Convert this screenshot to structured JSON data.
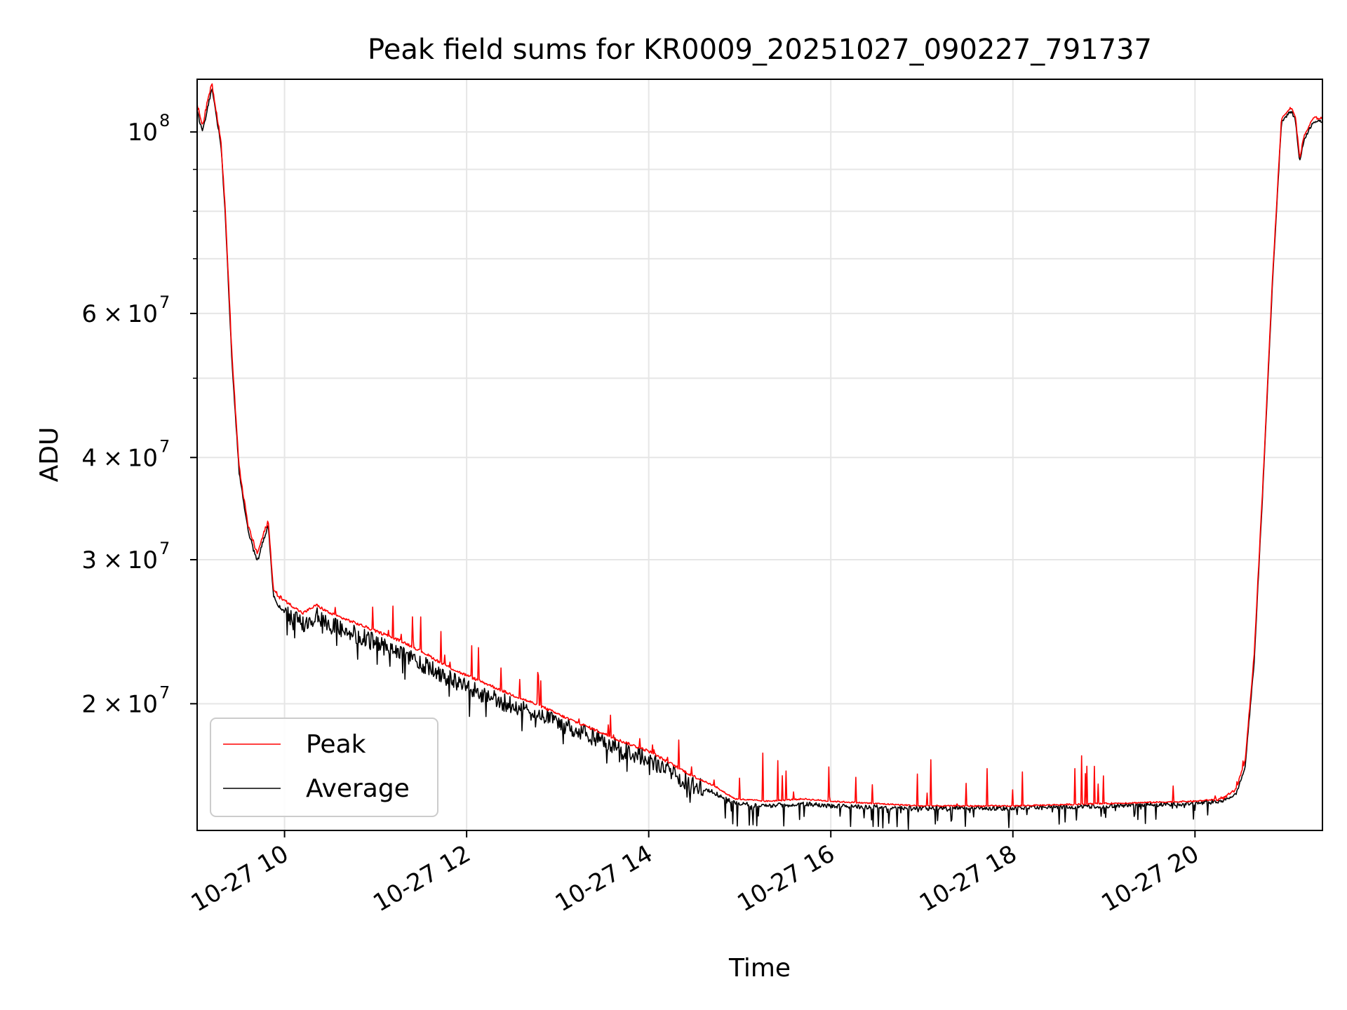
{
  "chart_data": {
    "type": "line",
    "title": "Peak field sums for KR0009_20251027_090227_791737",
    "xlabel": "Time",
    "ylabel": "ADU",
    "yscale": "log",
    "grid": true,
    "legend_position": "lower-left",
    "xlim_hours": [
      9.04,
      21.4
    ],
    "ylim": [
      14000000,
      116000000
    ],
    "x_ticks": [
      {
        "hour": 10,
        "label": "10-27 10"
      },
      {
        "hour": 12,
        "label": "10-27 12"
      },
      {
        "hour": 14,
        "label": "10-27 14"
      },
      {
        "hour": 16,
        "label": "10-27 16"
      },
      {
        "hour": 18,
        "label": "10-27 18"
      },
      {
        "hour": 20,
        "label": "10-27 20"
      }
    ],
    "y_ticks": [
      {
        "value": 20000000,
        "mant": "2",
        "exp": "7"
      },
      {
        "value": 30000000,
        "mant": "3",
        "exp": "7"
      },
      {
        "value": 40000000,
        "mant": "4",
        "exp": "7"
      },
      {
        "value": 60000000,
        "mant": "6",
        "exp": "7"
      },
      {
        "value": 100000000,
        "mant": "10",
        "exp": "8"
      }
    ],
    "y_minor_ticks": [
      50000000,
      70000000,
      80000000,
      90000000
    ],
    "series": [
      {
        "name": "Peak",
        "color": "#ff0000",
        "x": [
          9.04,
          9.1,
          9.2,
          9.3,
          9.35,
          9.42,
          9.5,
          9.6,
          9.7,
          9.78,
          9.82,
          9.88,
          9.95,
          10.05,
          10.2,
          10.35,
          10.5,
          10.7,
          10.9,
          11.1,
          11.3,
          11.5,
          11.7,
          11.9,
          12.2,
          12.5,
          12.8,
          13.1,
          13.4,
          13.7,
          14.0,
          14.2,
          14.45,
          14.7,
          14.95,
          15.3,
          15.7,
          16.0,
          16.5,
          17.0,
          17.5,
          18.0,
          18.5,
          19.0,
          19.5,
          20.0,
          20.3,
          20.45,
          20.55,
          20.65,
          20.75,
          20.85,
          20.95,
          21.05,
          21.1,
          21.15,
          21.2,
          21.3,
          21.4
        ],
        "values": [
          108000000,
          102000000,
          115000000,
          98000000,
          80000000,
          54000000,
          39000000,
          33000000,
          30500000,
          32500000,
          33500000,
          27500000,
          27000000,
          26500000,
          25800000,
          26400000,
          25800000,
          25300000,
          24800000,
          24300000,
          23800000,
          23200000,
          22500000,
          21900000,
          21200000,
          20500000,
          19900000,
          19200000,
          18600000,
          18000000,
          17500000,
          17000000,
          16400000,
          15900000,
          15300000,
          15200000,
          15300000,
          15200000,
          15100000,
          15000000,
          15000000,
          15000000,
          15050000,
          15100000,
          15150000,
          15200000,
          15300000,
          15700000,
          17000000,
          23000000,
          38000000,
          66000000,
          104000000,
          107000000,
          105000000,
          93000000,
          99000000,
          104000000,
          104000000
        ]
      },
      {
        "name": "Average",
        "color": "#000000",
        "x": [
          9.04,
          9.1,
          9.2,
          9.3,
          9.35,
          9.42,
          9.5,
          9.6,
          9.7,
          9.78,
          9.82,
          9.88,
          9.95,
          10.05,
          10.2,
          10.35,
          10.5,
          10.7,
          10.9,
          11.1,
          11.3,
          11.5,
          11.7,
          11.9,
          12.2,
          12.5,
          12.8,
          13.1,
          13.4,
          13.7,
          14.0,
          14.2,
          14.45,
          14.7,
          14.95,
          15.3,
          15.7,
          16.0,
          16.5,
          17.0,
          17.5,
          18.0,
          18.5,
          19.0,
          19.5,
          20.0,
          20.3,
          20.45,
          20.55,
          20.65,
          20.75,
          20.85,
          20.95,
          21.05,
          21.1,
          21.15,
          21.2,
          21.3,
          21.4
        ],
        "values": [
          106000000,
          100000000,
          113000000,
          97000000,
          79000000,
          53000000,
          38500000,
          32500000,
          29800000,
          32000000,
          33000000,
          27000000,
          26200000,
          25600000,
          25000000,
          25600000,
          25000000,
          24500000,
          24000000,
          23500000,
          23000000,
          22400000,
          21800000,
          21200000,
          20500000,
          19900000,
          19400000,
          18800000,
          18200000,
          17600000,
          17100000,
          16600000,
          16000000,
          15600000,
          15100000,
          15000000,
          15100000,
          15000000,
          14950000,
          14900000,
          14900000,
          14900000,
          14950000,
          15000000,
          15050000,
          15100000,
          15200000,
          15500000,
          16700000,
          22500000,
          37500000,
          65000000,
          103000000,
          106000000,
          104000000,
          92000000,
          98000000,
          103000000,
          103000000
        ]
      }
    ]
  },
  "legend": {
    "peak_label": "Peak",
    "average_label": "Average"
  }
}
